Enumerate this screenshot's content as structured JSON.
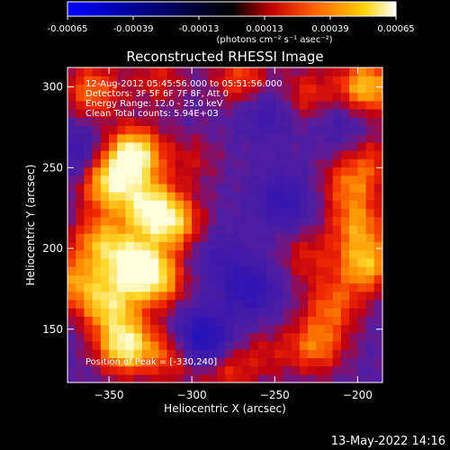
{
  "colorbar": {
    "ticks": [
      "-0.00065",
      "-0.00039",
      "-0.00013",
      "0.00013",
      "0.00039",
      "0.00065"
    ],
    "tick_values": [
      -0.00065,
      -0.00039,
      -0.00013,
      0.00013,
      0.00039,
      0.00065
    ],
    "unit_label": "(photons cm⁻² s⁻¹ asec⁻²)",
    "colormap": [
      "#0000ff",
      "#000000",
      "#ff0000",
      "#ff8000",
      "#ffff00",
      "#ffffff"
    ]
  },
  "chart_data": {
    "type": "heatmap",
    "title": "Reconstructed RHESSI Image",
    "xlabel": "Heliocentric X (arcsec)",
    "ylabel": "Heliocentric Y (arcsec)",
    "xlim": [
      -375,
      -185
    ],
    "ylim": [
      117,
      312
    ],
    "xticks": [
      -350,
      -300,
      -250,
      -200
    ],
    "yticks": [
      150,
      200,
      250,
      300
    ],
    "zrange": [
      -0.00065,
      0.00065
    ],
    "annotations": [
      "12-Aug-2012 05:45:56.000 to 05:51:56.000",
      "Detectors: 3F 5F 6F 7F 8F, Att 0",
      "Energy Range: 12.0 - 25.0 keV",
      "Clean     Total counts: 5.94E+03"
    ],
    "peak_label": "Position of Peak = [-330,240]",
    "peak": [
      -330,
      240
    ],
    "blobs": [
      {
        "x": -335,
        "y": 258,
        "v": 0.00065
      },
      {
        "x": -350,
        "y": 240,
        "v": 0.0005
      },
      {
        "x": -325,
        "y": 225,
        "v": 0.00055
      },
      {
        "x": -310,
        "y": 215,
        "v": 0.0004
      },
      {
        "x": -355,
        "y": 205,
        "v": 0.0004
      },
      {
        "x": -335,
        "y": 190,
        "v": 0.0006
      },
      {
        "x": -320,
        "y": 180,
        "v": 0.0004
      },
      {
        "x": -370,
        "y": 180,
        "v": 0.00035
      },
      {
        "x": -350,
        "y": 165,
        "v": 0.00045
      },
      {
        "x": -340,
        "y": 140,
        "v": 0.0006
      },
      {
        "x": -310,
        "y": 135,
        "v": 0.00035
      },
      {
        "x": -280,
        "y": 125,
        "v": 0.00025
      },
      {
        "x": -255,
        "y": 135,
        "v": 0.00015
      },
      {
        "x": -225,
        "y": 140,
        "v": 0.00035
      },
      {
        "x": -215,
        "y": 165,
        "v": 0.0003
      },
      {
        "x": -195,
        "y": 190,
        "v": 0.00045
      },
      {
        "x": -230,
        "y": 195,
        "v": 0.0002
      },
      {
        "x": -200,
        "y": 215,
        "v": 0.00035
      },
      {
        "x": -205,
        "y": 240,
        "v": 0.0003
      },
      {
        "x": -195,
        "y": 300,
        "v": 0.0005
      },
      {
        "x": -190,
        "y": 255,
        "v": 0.0002
      },
      {
        "x": -230,
        "y": 295,
        "v": 0.00025
      },
      {
        "x": -270,
        "y": 305,
        "v": 0.0003
      },
      {
        "x": -320,
        "y": 305,
        "v": 0.0002
      },
      {
        "x": -360,
        "y": 298,
        "v": 0.00035
      },
      {
        "x": -300,
        "y": 255,
        "v": 0.00015
      },
      {
        "x": -295,
        "y": 143,
        "v": -0.00055
      },
      {
        "x": -265,
        "y": 175,
        "v": -0.0003
      },
      {
        "x": -245,
        "y": 230,
        "v": -0.00025
      },
      {
        "x": -285,
        "y": 195,
        "v": -0.00015
      },
      {
        "x": -255,
        "y": 285,
        "v": -0.0002
      },
      {
        "x": -370,
        "y": 260,
        "v": -0.0002
      },
      {
        "x": -210,
        "y": 280,
        "v": -0.00015
      }
    ]
  },
  "footer": {
    "date": "13-May-2022 14:16"
  }
}
